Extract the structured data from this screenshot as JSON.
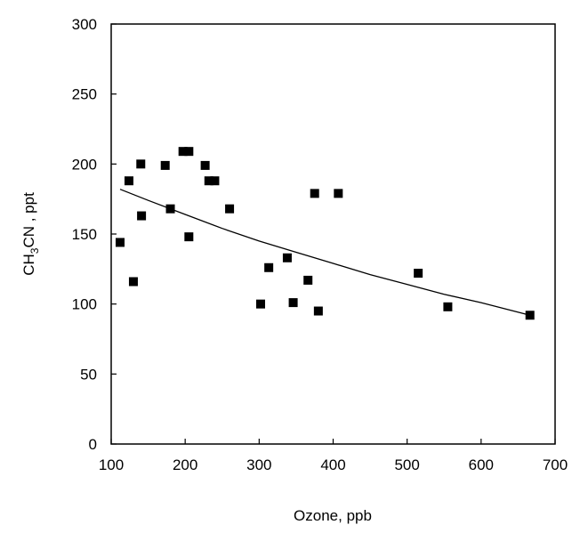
{
  "chart_data": {
    "type": "scatter",
    "title": "",
    "xlabel": "Ozone, ppb",
    "ylabel": {
      "prefix": "CH",
      "sub": "3",
      "suffix": "CN , ppt"
    },
    "xlim": [
      100,
      700
    ],
    "ylim": [
      0,
      300
    ],
    "xticks": [
      100,
      200,
      300,
      400,
      500,
      600,
      700
    ],
    "yticks": [
      0,
      50,
      100,
      150,
      200,
      250,
      300
    ],
    "grid": false,
    "series": [
      {
        "type": "scatter",
        "marker": "square",
        "color": "#000000",
        "points": [
          {
            "x": 112,
            "y": 144
          },
          {
            "x": 124,
            "y": 188
          },
          {
            "x": 130,
            "y": 116
          },
          {
            "x": 140,
            "y": 200
          },
          {
            "x": 141,
            "y": 163
          },
          {
            "x": 173,
            "y": 199
          },
          {
            "x": 180,
            "y": 168
          },
          {
            "x": 197,
            "y": 209
          },
          {
            "x": 205,
            "y": 209
          },
          {
            "x": 205,
            "y": 148
          },
          {
            "x": 227,
            "y": 199
          },
          {
            "x": 232,
            "y": 188
          },
          {
            "x": 240,
            "y": 188
          },
          {
            "x": 260,
            "y": 168
          },
          {
            "x": 302,
            "y": 100
          },
          {
            "x": 313,
            "y": 126
          },
          {
            "x": 338,
            "y": 133
          },
          {
            "x": 346,
            "y": 101
          },
          {
            "x": 366,
            "y": 117
          },
          {
            "x": 375,
            "y": 179
          },
          {
            "x": 380,
            "y": 95
          },
          {
            "x": 407,
            "y": 179
          },
          {
            "x": 515,
            "y": 122
          },
          {
            "x": 555,
            "y": 98
          },
          {
            "x": 666,
            "y": 92
          }
        ]
      },
      {
        "type": "line",
        "color": "#000000",
        "points": [
          {
            "x": 112,
            "y": 182
          },
          {
            "x": 150,
            "y": 174
          },
          {
            "x": 200,
            "y": 164
          },
          {
            "x": 250,
            "y": 154
          },
          {
            "x": 300,
            "y": 145
          },
          {
            "x": 350,
            "y": 137
          },
          {
            "x": 400,
            "y": 129
          },
          {
            "x": 450,
            "y": 121
          },
          {
            "x": 500,
            "y": 114
          },
          {
            "x": 550,
            "y": 107
          },
          {
            "x": 600,
            "y": 101
          },
          {
            "x": 666,
            "y": 92
          }
        ]
      }
    ]
  }
}
